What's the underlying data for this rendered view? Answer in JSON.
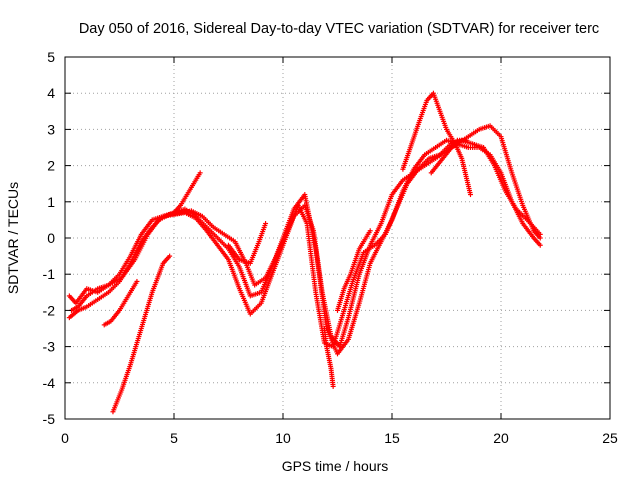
{
  "chart_data": {
    "type": "scatter",
    "title": "Day 050 of 2016, Sidereal Day-to-day VTEC variation (SDTVAR) for receiver terc",
    "xlabel": "GPS time / hours",
    "ylabel": "SDTVAR / TECUs",
    "xlim": [
      0,
      25
    ],
    "ylim": [
      -5,
      5
    ],
    "x_ticks": [
      "0",
      "5",
      "10",
      "15",
      "20",
      "25"
    ],
    "y_ticks": [
      "-5",
      "-4",
      "-3",
      "-2",
      "-1",
      "0",
      "1",
      "2",
      "3",
      "4",
      "5"
    ],
    "grid": true,
    "marker": "+",
    "color": "#ff0000",
    "series": [
      {
        "x": [
          0.2,
          0.5,
          1.0,
          1.5,
          2.0,
          2.6,
          3.2,
          3.8,
          4.3,
          4.8,
          5.3,
          5.8,
          6.3,
          6.8,
          7.3,
          7.8,
          8.3,
          8.7,
          9.2,
          9.7,
          10.2,
          10.7,
          11.1,
          11.5,
          11.9,
          12.3,
          12.7,
          13.2,
          13.7,
          14.2,
          14.7,
          15.2,
          15.7,
          16.2,
          16.7,
          17.2,
          17.7,
          18.2,
          18.7,
          19.2,
          19.7,
          20.2,
          20.7,
          21.2,
          21.8
        ],
        "y": [
          -1.6,
          -1.8,
          -1.4,
          -1.5,
          -1.3,
          -1.1,
          -0.6,
          0.1,
          0.5,
          0.65,
          0.7,
          0.75,
          0.6,
          0.3,
          0.1,
          -0.1,
          -0.7,
          -1.3,
          -1.1,
          -0.5,
          0.2,
          0.9,
          0.4,
          -1.5,
          -2.9,
          -3.0,
          -2.2,
          -1.2,
          -0.4,
          -0.2,
          0.1,
          0.8,
          1.5,
          1.9,
          2.2,
          2.3,
          2.6,
          2.7,
          2.6,
          2.5,
          2.0,
          1.3,
          0.8,
          0.5,
          0.1
        ]
      },
      {
        "x": [
          0.2,
          0.6,
          1.0,
          1.5,
          2.0,
          2.5,
          3.0,
          3.5,
          4.0,
          4.5,
          5.0,
          5.5,
          6.0,
          6.5,
          7.0,
          7.5,
          8.0,
          8.5,
          9.0,
          9.5,
          10.0,
          10.5,
          11.0,
          11.5,
          12.0,
          12.5,
          13.0,
          13.5,
          14.0,
          14.5,
          15.0,
          15.5,
          16.0,
          16.5,
          17.0,
          17.5,
          18.0,
          18.5,
          19.0,
          19.5,
          20.0,
          20.5,
          21.0,
          21.5,
          21.8
        ],
        "y": [
          -2.2,
          -2.0,
          -1.9,
          -1.7,
          -1.5,
          -1.2,
          -0.7,
          -0.1,
          0.3,
          0.6,
          0.7,
          0.8,
          0.6,
          0.3,
          0.0,
          -0.3,
          -0.8,
          -1.6,
          -1.5,
          -0.8,
          0.0,
          0.8,
          1.2,
          -0.3,
          -2.5,
          -3.2,
          -2.8,
          -1.8,
          -0.7,
          -0.1,
          0.5,
          1.3,
          1.9,
          2.3,
          2.5,
          2.7,
          2.6,
          2.5,
          2.5,
          2.3,
          1.8,
          1.0,
          0.4,
          0.0,
          -0.2
        ]
      },
      {
        "x": [
          0.3,
          0.6,
          1.0,
          1.5,
          2.0,
          2.5,
          3.0,
          3.5,
          4.0,
          4.5,
          5.0,
          5.5,
          6.0,
          6.5,
          7.0,
          7.5,
          8.0,
          8.5,
          9.0,
          9.5,
          10.0,
          10.5,
          11.0,
          11.4,
          11.8,
          12.2,
          12.6,
          13.0,
          13.5,
          14.0,
          14.5,
          15.0,
          15.5,
          16.0,
          16.5,
          17.0,
          17.5,
          18.0,
          18.5,
          19.0,
          19.5,
          20.0,
          20.5,
          21.0,
          21.5,
          21.8
        ],
        "y": [
          -2.0,
          -1.9,
          -1.6,
          -1.4,
          -1.3,
          -1.0,
          -0.5,
          0.1,
          0.5,
          0.6,
          0.65,
          0.7,
          0.55,
          0.2,
          -0.2,
          -0.6,
          -1.4,
          -2.1,
          -1.8,
          -1.0,
          -0.2,
          0.6,
          0.9,
          0.2,
          -1.5,
          -2.7,
          -3.0,
          -2.2,
          -1.0,
          -0.2,
          0.4,
          1.2,
          1.6,
          1.8,
          2.0,
          2.2,
          2.4,
          2.6,
          2.8,
          3.0,
          3.1,
          2.8,
          1.8,
          0.9,
          0.2,
          0.0
        ]
      },
      {
        "x": [
          2.2,
          2.6,
          3.0,
          3.5,
          4.0,
          4.5,
          4.8
        ],
        "y": [
          -4.8,
          -4.2,
          -3.5,
          -2.5,
          -1.5,
          -0.7,
          -0.5
        ]
      },
      {
        "x": [
          1.8,
          2.1,
          2.5,
          3.0,
          3.3
        ],
        "y": [
          -2.4,
          -2.3,
          -2.0,
          -1.5,
          -1.2
        ]
      },
      {
        "x": [
          5.0,
          5.3,
          5.6,
          5.9,
          6.2
        ],
        "y": [
          0.7,
          0.9,
          1.2,
          1.5,
          1.8
        ]
      },
      {
        "x": [
          7.5,
          8.0,
          8.5,
          8.9,
          9.2
        ],
        "y": [
          -0.2,
          -0.6,
          -0.7,
          -0.1,
          0.4
        ]
      },
      {
        "x": [
          11.9,
          12.0,
          12.2,
          12.3
        ],
        "y": [
          -2.5,
          -3.0,
          -3.6,
          -4.1
        ]
      },
      {
        "x": [
          12.5,
          12.8,
          13.1,
          13.5,
          14.0
        ],
        "y": [
          -2.0,
          -1.4,
          -1.0,
          -0.3,
          0.2
        ]
      },
      {
        "x": [
          15.5,
          15.9,
          16.3,
          16.6,
          16.9,
          17.2,
          17.5,
          17.9,
          18.2,
          18.4,
          18.6
        ],
        "y": [
          1.9,
          2.6,
          3.3,
          3.8,
          4.0,
          3.5,
          3.0,
          2.6,
          2.2,
          1.7,
          1.2
        ]
      },
      {
        "x": [
          16.8,
          17.2,
          17.6,
          18.0,
          18.4
        ],
        "y": [
          1.8,
          2.1,
          2.4,
          2.7,
          2.7
        ]
      }
    ]
  }
}
